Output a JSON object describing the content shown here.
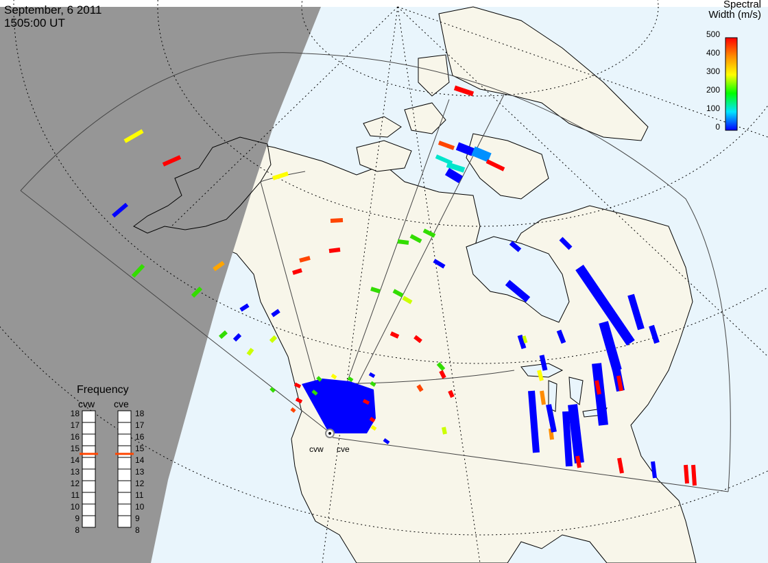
{
  "header": {
    "date": "September, 6 2011",
    "time": "1505:00 UT"
  },
  "colorbar": {
    "title_line1": "Spectral",
    "title_line2": "Width (m/s)",
    "ticks": [
      "500",
      "400",
      "300",
      "200",
      "100",
      "0"
    ],
    "range": [
      0,
      500
    ],
    "colors": [
      "#0000ff",
      "#00e5ff",
      "#00ff00",
      "#ffff00",
      "#ff8c00",
      "#ff0000"
    ]
  },
  "frequency_panel": {
    "title": "Frequency",
    "radars": [
      {
        "name": "cvw",
        "frequency_mhz": 14.8
      },
      {
        "name": "cve",
        "frequency_mhz": 14.8
      }
    ],
    "scale": [
      "18",
      "17",
      "16",
      "15",
      "14",
      "13",
      "12",
      "11",
      "10",
      "9",
      "8"
    ],
    "marker_color": "#ff4500"
  },
  "stations": {
    "cvw": "cvw",
    "cve": "cve"
  },
  "map_colors": {
    "night": "#969696",
    "ocean": "#e9f5fc",
    "land": "#f8f6ea",
    "coast": "#000000"
  }
}
